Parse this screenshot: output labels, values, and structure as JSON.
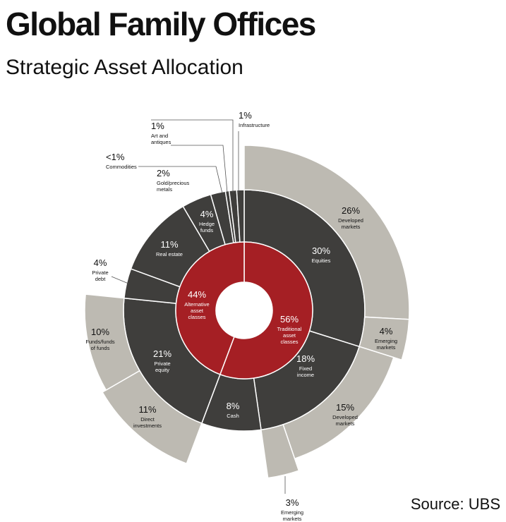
{
  "title": "Global Family Offices",
  "subtitle": "Strategic Asset Allocation",
  "source": "Source: UBS",
  "colors": {
    "inner": "#a51f24",
    "middle": "#3f3e3c",
    "outer": "#bdbab2",
    "gap": "#ffffff",
    "leader": "#555555",
    "text_dark": "#111111",
    "text_light": "#ffffff"
  },
  "chart_data": {
    "type": "sunburst",
    "title": "Global Family Offices",
    "subtitle": "Strategic Asset Allocation",
    "rings": {
      "inner": [
        {
          "pct": "56%",
          "value": 56,
          "lines": [
            "Traditional",
            "asset",
            "classes"
          ]
        },
        {
          "pct": "44%",
          "value": 44,
          "lines": [
            "Alternative",
            "asset",
            "classes"
          ]
        }
      ],
      "middle": [
        {
          "pct": "30%",
          "value": 30,
          "lines": [
            "Equities"
          ]
        },
        {
          "pct": "18%",
          "value": 18,
          "lines": [
            "Fixed",
            "income"
          ]
        },
        {
          "pct": "8%",
          "value": 8,
          "lines": [
            "Cash"
          ]
        },
        {
          "pct": "21%",
          "value": 21,
          "lines": [
            "Private",
            "equity"
          ]
        },
        {
          "pct": "4%",
          "value": 4,
          "lines": [
            "Private",
            "debt"
          ]
        },
        {
          "pct": "11%",
          "value": 11,
          "lines": [
            "Real estate"
          ]
        },
        {
          "pct": "4%",
          "value": 4,
          "lines": [
            "Hedge",
            "funds"
          ]
        },
        {
          "pct": "2%",
          "value": 2,
          "lines": [
            "Gold/precious",
            "metals"
          ]
        },
        {
          "pct": "<1%",
          "value": 0.5,
          "lines": [
            "Commodities"
          ]
        },
        {
          "pct": "1%",
          "value": 1,
          "lines": [
            "Art and",
            "antiques"
          ]
        },
        {
          "pct": "1%",
          "value": 1,
          "lines": [
            "Infrastructure"
          ]
        }
      ],
      "outer": [
        {
          "pct": "26%",
          "value": 26,
          "parent": "Equities",
          "lines": [
            "Developed",
            "markets"
          ]
        },
        {
          "pct": "4%",
          "value": 4,
          "parent": "Equities",
          "lines": [
            "Emerging",
            "markets"
          ]
        },
        {
          "pct": "15%",
          "value": 15,
          "parent": "Fixed income",
          "lines": [
            "Developed",
            "markets"
          ]
        },
        {
          "pct": "3%",
          "value": 3,
          "parent": "Fixed income",
          "lines": [
            "Emerging",
            "markets"
          ]
        },
        {
          "pct": "11%",
          "value": 11,
          "parent": "Private equity",
          "lines": [
            "Direct",
            "investments"
          ]
        },
        {
          "pct": "10%",
          "value": 10,
          "parent": "Private equity",
          "lines": [
            "Funds/funds",
            "of funds"
          ]
        }
      ]
    }
  }
}
